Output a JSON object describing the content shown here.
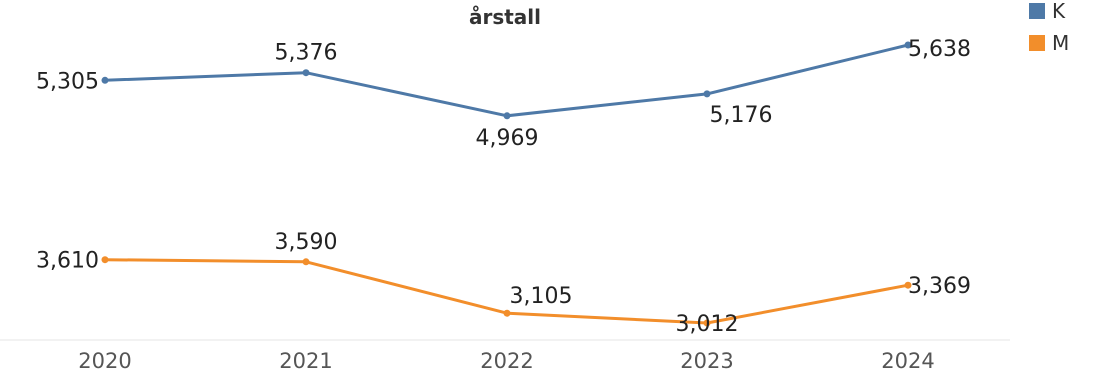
{
  "chart_data": {
    "type": "line",
    "title": "årstall",
    "x": [
      "2020",
      "2021",
      "2022",
      "2023",
      "2024"
    ],
    "series": [
      {
        "name": "K",
        "color": "#4E79A7",
        "values": [
          5305,
          5376,
          4969,
          5176,
          5638
        ],
        "labels": [
          "5,305",
          "5,376",
          "4,969",
          "5,176",
          "5,638"
        ]
      },
      {
        "name": "M",
        "color": "#F28E2B",
        "values": [
          3610,
          3590,
          3105,
          3012,
          3369
        ],
        "labels": [
          "3,610",
          "3,590",
          "3,105",
          "3,012",
          "3,369"
        ]
      }
    ],
    "legend": "top-right",
    "grid": false
  }
}
